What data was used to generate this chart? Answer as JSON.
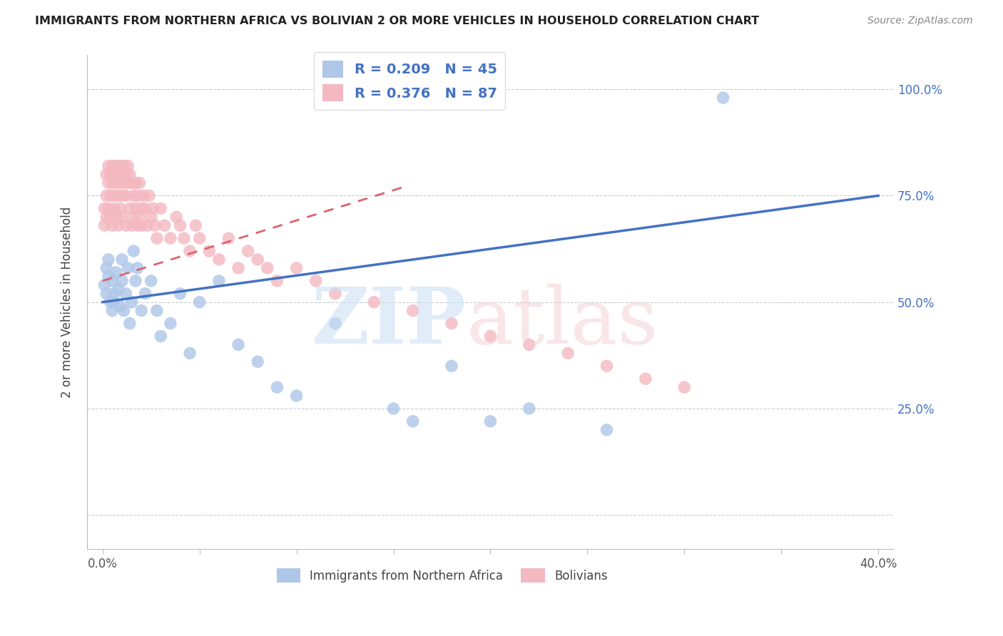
{
  "title": "IMMIGRANTS FROM NORTHERN AFRICA VS BOLIVIAN 2 OR MORE VEHICLES IN HOUSEHOLD CORRELATION CHART",
  "source": "Source: ZipAtlas.com",
  "ylabel": "2 or more Vehicles in Household",
  "r_blue": 0.209,
  "n_blue": 45,
  "r_pink": 0.376,
  "n_pink": 87,
  "blue_color": "#aec6e8",
  "pink_color": "#f4b8c1",
  "blue_line_color": "#4472c4",
  "pink_line_color": "#d9636e",
  "legend_label_blue": "Immigrants from Northern Africa",
  "legend_label_pink": "Bolivians",
  "blue_scatter_x": [
    0.001,
    0.002,
    0.002,
    0.003,
    0.003,
    0.004,
    0.005,
    0.005,
    0.006,
    0.006,
    0.007,
    0.008,
    0.009,
    0.01,
    0.01,
    0.011,
    0.012,
    0.013,
    0.014,
    0.015,
    0.016,
    0.017,
    0.018,
    0.02,
    0.022,
    0.025,
    0.028,
    0.03,
    0.035,
    0.04,
    0.045,
    0.05,
    0.06,
    0.07,
    0.08,
    0.09,
    0.1,
    0.12,
    0.15,
    0.16,
    0.18,
    0.2,
    0.22,
    0.26,
    0.32
  ],
  "blue_scatter_y": [
    0.54,
    0.58,
    0.52,
    0.56,
    0.6,
    0.5,
    0.48,
    0.55,
    0.52,
    0.5,
    0.57,
    0.53,
    0.49,
    0.6,
    0.55,
    0.48,
    0.52,
    0.58,
    0.45,
    0.5,
    0.62,
    0.55,
    0.58,
    0.48,
    0.52,
    0.55,
    0.48,
    0.42,
    0.45,
    0.52,
    0.38,
    0.5,
    0.55,
    0.4,
    0.36,
    0.3,
    0.28,
    0.45,
    0.25,
    0.22,
    0.35,
    0.22,
    0.25,
    0.2,
    0.98
  ],
  "pink_scatter_x": [
    0.001,
    0.001,
    0.002,
    0.002,
    0.002,
    0.003,
    0.003,
    0.003,
    0.004,
    0.004,
    0.004,
    0.005,
    0.005,
    0.005,
    0.006,
    0.006,
    0.006,
    0.007,
    0.007,
    0.007,
    0.008,
    0.008,
    0.008,
    0.009,
    0.009,
    0.009,
    0.01,
    0.01,
    0.01,
    0.011,
    0.011,
    0.012,
    0.012,
    0.012,
    0.013,
    0.013,
    0.014,
    0.014,
    0.015,
    0.015,
    0.016,
    0.016,
    0.017,
    0.017,
    0.018,
    0.018,
    0.019,
    0.019,
    0.02,
    0.02,
    0.021,
    0.022,
    0.023,
    0.024,
    0.025,
    0.026,
    0.027,
    0.028,
    0.03,
    0.032,
    0.035,
    0.038,
    0.04,
    0.042,
    0.045,
    0.048,
    0.05,
    0.055,
    0.06,
    0.065,
    0.07,
    0.075,
    0.08,
    0.085,
    0.09,
    0.1,
    0.11,
    0.12,
    0.14,
    0.16,
    0.18,
    0.2,
    0.22,
    0.24,
    0.26,
    0.28,
    0.3
  ],
  "pink_scatter_y": [
    0.72,
    0.68,
    0.8,
    0.75,
    0.7,
    0.82,
    0.78,
    0.72,
    0.8,
    0.75,
    0.7,
    0.82,
    0.78,
    0.68,
    0.8,
    0.75,
    0.72,
    0.82,
    0.78,
    0.7,
    0.8,
    0.75,
    0.68,
    0.82,
    0.78,
    0.72,
    0.8,
    0.75,
    0.7,
    0.82,
    0.78,
    0.8,
    0.75,
    0.68,
    0.82,
    0.78,
    0.8,
    0.72,
    0.78,
    0.68,
    0.75,
    0.7,
    0.78,
    0.72,
    0.68,
    0.75,
    0.7,
    0.78,
    0.72,
    0.68,
    0.75,
    0.72,
    0.68,
    0.75,
    0.7,
    0.72,
    0.68,
    0.65,
    0.72,
    0.68,
    0.65,
    0.7,
    0.68,
    0.65,
    0.62,
    0.68,
    0.65,
    0.62,
    0.6,
    0.65,
    0.58,
    0.62,
    0.6,
    0.58,
    0.55,
    0.58,
    0.55,
    0.52,
    0.5,
    0.48,
    0.45,
    0.42,
    0.4,
    0.38,
    0.35,
    0.32,
    0.3
  ]
}
